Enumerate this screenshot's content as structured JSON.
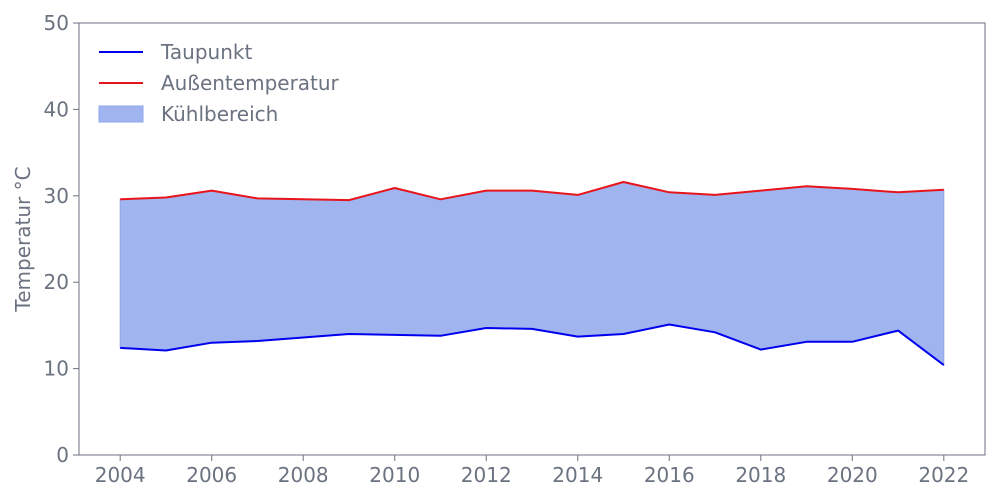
{
  "chart_data": {
    "type": "line",
    "title": "",
    "xlabel": "",
    "ylabel": "Temperatur °C",
    "xlim": [
      2003.1,
      2022.9
    ],
    "ylim": [
      0,
      50
    ],
    "x": [
      2004,
      2005,
      2006,
      2007,
      2008,
      2009,
      2010,
      2011,
      2012,
      2013,
      2014,
      2015,
      2016,
      2017,
      2018,
      2019,
      2020,
      2021,
      2022
    ],
    "xticks": [
      2004,
      2006,
      2008,
      2010,
      2012,
      2014,
      2016,
      2018,
      2020,
      2022
    ],
    "yticks": [
      0,
      10,
      20,
      30,
      40,
      50
    ],
    "grid": false,
    "legend_position": "top-left",
    "series": [
      {
        "name": "Taupunkt",
        "color": "#0000ee",
        "values": [
          12.4,
          12.1,
          13.0,
          13.2,
          13.6,
          14.0,
          13.9,
          13.8,
          14.7,
          14.6,
          13.7,
          14.0,
          15.1,
          14.2,
          12.2,
          13.1,
          13.1,
          14.4,
          10.4
        ]
      },
      {
        "name": "Außentemperatur",
        "color": "#e8141b",
        "values": [
          29.6,
          29.8,
          30.6,
          29.7,
          29.6,
          29.5,
          30.9,
          29.6,
          30.6,
          30.6,
          30.1,
          31.6,
          30.4,
          30.1,
          30.6,
          31.1,
          30.8,
          30.4,
          30.7
        ]
      }
    ],
    "fill": {
      "name": "Kühlbereich",
      "color": "#a0b4ef",
      "between": [
        "Taupunkt",
        "Außentemperatur"
      ]
    },
    "axis_color": "#6b7280"
  }
}
